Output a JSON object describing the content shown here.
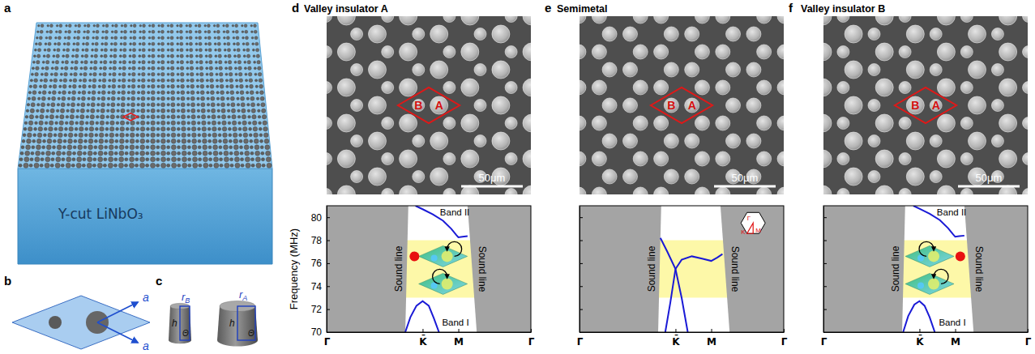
{
  "figure": {
    "a": {
      "letter": "a",
      "substrate": "Y-cut LiNbO₃"
    },
    "b": {
      "letter": "b",
      "lattice_constant": "a"
    },
    "c": {
      "letter": "c",
      "height": "h",
      "angle": "Θ",
      "radius_B": {
        "base": "r",
        "sub": "B"
      },
      "radius_A": {
        "base": "r",
        "sub": "A"
      }
    },
    "sem": [
      {
        "site_left": "B",
        "site_right": "A",
        "scale_bar": "50μm"
      },
      {
        "site_left": "B",
        "site_right": "A",
        "scale_bar": "50μm"
      },
      {
        "site_left": "B",
        "site_right": "A",
        "scale_bar": "50μm"
      }
    ]
  },
  "chart_data": [
    {
      "type": "line",
      "panel": "d",
      "title": "Valley insulator A",
      "ylabel": "Frequency (MHz)",
      "xlim": [
        0,
        1
      ],
      "ylim": [
        70,
        81
      ],
      "xticks": [
        {
          "value": 0,
          "label": "Γ"
        },
        {
          "value": 0.47,
          "label": "K̄"
        },
        {
          "value": 0.645,
          "label": "M"
        },
        {
          "value": 1,
          "label": "Γ"
        }
      ],
      "yticks": [
        70,
        72,
        74,
        76,
        78,
        80
      ],
      "series": [
        {
          "name": "Band I",
          "color": "#1a1ad6",
          "x": [
            0.385,
            0.41,
            0.44,
            0.47,
            0.5,
            0.525,
            0.55
          ],
          "values": [
            70,
            71.3,
            72.3,
            72.7,
            72.3,
            71.2,
            70
          ]
        },
        {
          "name": "Band II",
          "color": "#1a1ad6",
          "x": [
            0.435,
            0.47,
            0.52,
            0.57,
            0.61,
            0.635,
            0.645,
            0.665,
            0.69
          ],
          "values": [
            81,
            80.7,
            80.25,
            79.7,
            79.0,
            78.45,
            78.25,
            78.3,
            78.35
          ]
        }
      ],
      "sound_line": {
        "label": "Sound line",
        "left_x": [
          0.4,
          0.385
        ],
        "right_x": [
          0.69,
          0.735
        ],
        "y": [
          81,
          70
        ]
      },
      "band_gap": [
        73,
        78
      ]
    },
    {
      "type": "line",
      "panel": "e",
      "title": "Semimetal",
      "xlim": [
        0,
        1
      ],
      "ylim": [
        70,
        81
      ],
      "xticks": [
        {
          "value": 0,
          "label": "Γ"
        },
        {
          "value": 0.47,
          "label": "K̄"
        },
        {
          "value": 0.645,
          "label": "M"
        },
        {
          "value": 1,
          "label": "Γ"
        }
      ],
      "yticks": [
        70,
        72,
        74,
        76,
        78,
        80
      ],
      "tick_labels": "x",
      "series": [
        {
          "color": "#1a1ad6",
          "x": [
            0.396,
            0.43,
            0.47,
            0.5,
            0.53
          ],
          "values": [
            78.2,
            77.0,
            75.5,
            73.0,
            70
          ]
        },
        {
          "color": "#1a1ad6",
          "x": [
            0.42,
            0.445,
            0.47,
            0.5,
            0.55,
            0.6,
            0.645,
            0.675,
            0.7
          ],
          "values": [
            70,
            72.6,
            75.5,
            76.3,
            76.6,
            76.4,
            76.2,
            76.5,
            76.8
          ]
        }
      ],
      "sound_line": {
        "label": "Sound line",
        "left_x": [
          0.4,
          0.385
        ],
        "right_x": [
          0.69,
          0.735
        ],
        "y": [
          81,
          70
        ]
      },
      "band_gap": [
        73,
        78
      ],
      "bz_labels": [
        "Γ",
        "K",
        "M"
      ]
    },
    {
      "type": "line",
      "panel": "f",
      "title": "Valley insulator B",
      "xlim": [
        0,
        1
      ],
      "ylim": [
        70,
        81
      ],
      "xticks": [
        {
          "value": 0,
          "label": "Γ"
        },
        {
          "value": 0.47,
          "label": "K̄"
        },
        {
          "value": 0.645,
          "label": "M"
        },
        {
          "value": 1,
          "label": "Γ"
        }
      ],
      "yticks": [
        70,
        72,
        74,
        76,
        78,
        80
      ],
      "tick_labels": "x",
      "series": [
        {
          "name": "Band I",
          "color": "#1a1ad6",
          "x": [
            0.39,
            0.415,
            0.445,
            0.47,
            0.495,
            0.52,
            0.545
          ],
          "values": [
            70,
            71.4,
            72.4,
            72.7,
            72.3,
            71.3,
            70
          ]
        },
        {
          "name": "Band II",
          "color": "#1a1ad6",
          "x": [
            0.44,
            0.47,
            0.52,
            0.57,
            0.61,
            0.635,
            0.645,
            0.665,
            0.69
          ],
          "values": [
            81,
            80.75,
            80.3,
            79.75,
            79.05,
            78.5,
            78.3,
            78.35,
            78.4
          ]
        }
      ],
      "sound_line": {
        "label": "Sound line",
        "left_x": [
          0.4,
          0.385
        ],
        "right_x": [
          0.69,
          0.735
        ],
        "y": [
          81,
          70
        ]
      },
      "band_gap": [
        73,
        78
      ]
    }
  ]
}
